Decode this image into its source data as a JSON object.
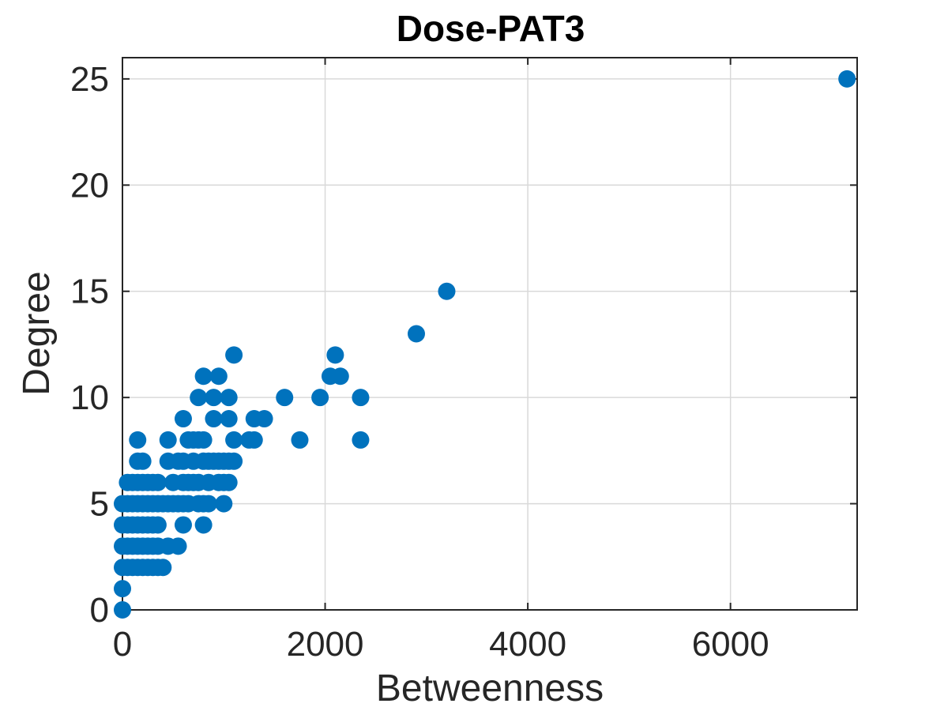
{
  "chart_data": {
    "type": "scatter",
    "title": "Dose-PAT3",
    "xlabel": "Betweenness",
    "ylabel": "Degree",
    "xlim": [
      0,
      7250
    ],
    "ylim": [
      0,
      26
    ],
    "xticks": [
      0,
      2000,
      4000,
      6000
    ],
    "yticks": [
      0,
      5,
      10,
      15,
      20,
      25
    ],
    "xtick_labels": [
      "0",
      "2000",
      "4000",
      "6000"
    ],
    "ytick_labels": [
      "0",
      "5",
      "10",
      "15",
      "20",
      "25"
    ],
    "grid": true,
    "marker_color": "#0072BD",
    "series": [
      {
        "x": [
          0,
          0,
          0,
          0,
          0,
          0,
          50,
          100,
          150,
          200,
          250,
          300,
          350,
          400,
          50,
          100,
          150,
          200,
          250,
          300,
          350,
          50,
          100,
          150,
          200,
          250,
          300,
          350,
          450,
          550,
          600,
          800,
          50,
          100,
          150,
          200,
          250,
          300,
          350,
          400,
          450,
          500,
          550,
          600,
          650,
          750,
          800,
          850,
          1000,
          50,
          100,
          150,
          200,
          250,
          300,
          350,
          500,
          600,
          650,
          700,
          750,
          850,
          950,
          1000,
          1050,
          150,
          200,
          450,
          550,
          600,
          700,
          800,
          850,
          900,
          950,
          1000,
          1050,
          1100,
          150,
          450,
          650,
          700,
          750,
          800,
          1100,
          1250,
          1300,
          1750,
          2350,
          600,
          900,
          1050,
          1300,
          1400,
          750,
          900,
          1050,
          1600,
          1950,
          2350,
          800,
          950,
          2050,
          2150,
          1100,
          2100,
          2900,
          3200,
          7150
        ],
        "y": [
          0,
          1,
          2,
          3,
          4,
          5,
          2,
          2,
          2,
          2,
          2,
          2,
          2,
          2,
          3,
          3,
          3,
          3,
          3,
          3,
          3,
          4,
          4,
          4,
          4,
          4,
          4,
          4,
          3,
          3,
          4,
          4,
          5,
          5,
          5,
          5,
          5,
          5,
          5,
          5,
          5,
          5,
          5,
          5,
          5,
          5,
          5,
          5,
          5,
          6,
          6,
          6,
          6,
          6,
          6,
          6,
          6,
          6,
          6,
          6,
          6,
          6,
          6,
          6,
          6,
          7,
          7,
          7,
          7,
          7,
          7,
          7,
          7,
          7,
          7,
          7,
          7,
          7,
          8,
          8,
          8,
          8,
          8,
          8,
          8,
          8,
          8,
          8,
          8,
          9,
          9,
          9,
          9,
          9,
          10,
          10,
          10,
          10,
          10,
          10,
          11,
          11,
          11,
          11,
          12,
          12,
          13,
          15,
          25
        ]
      }
    ]
  }
}
